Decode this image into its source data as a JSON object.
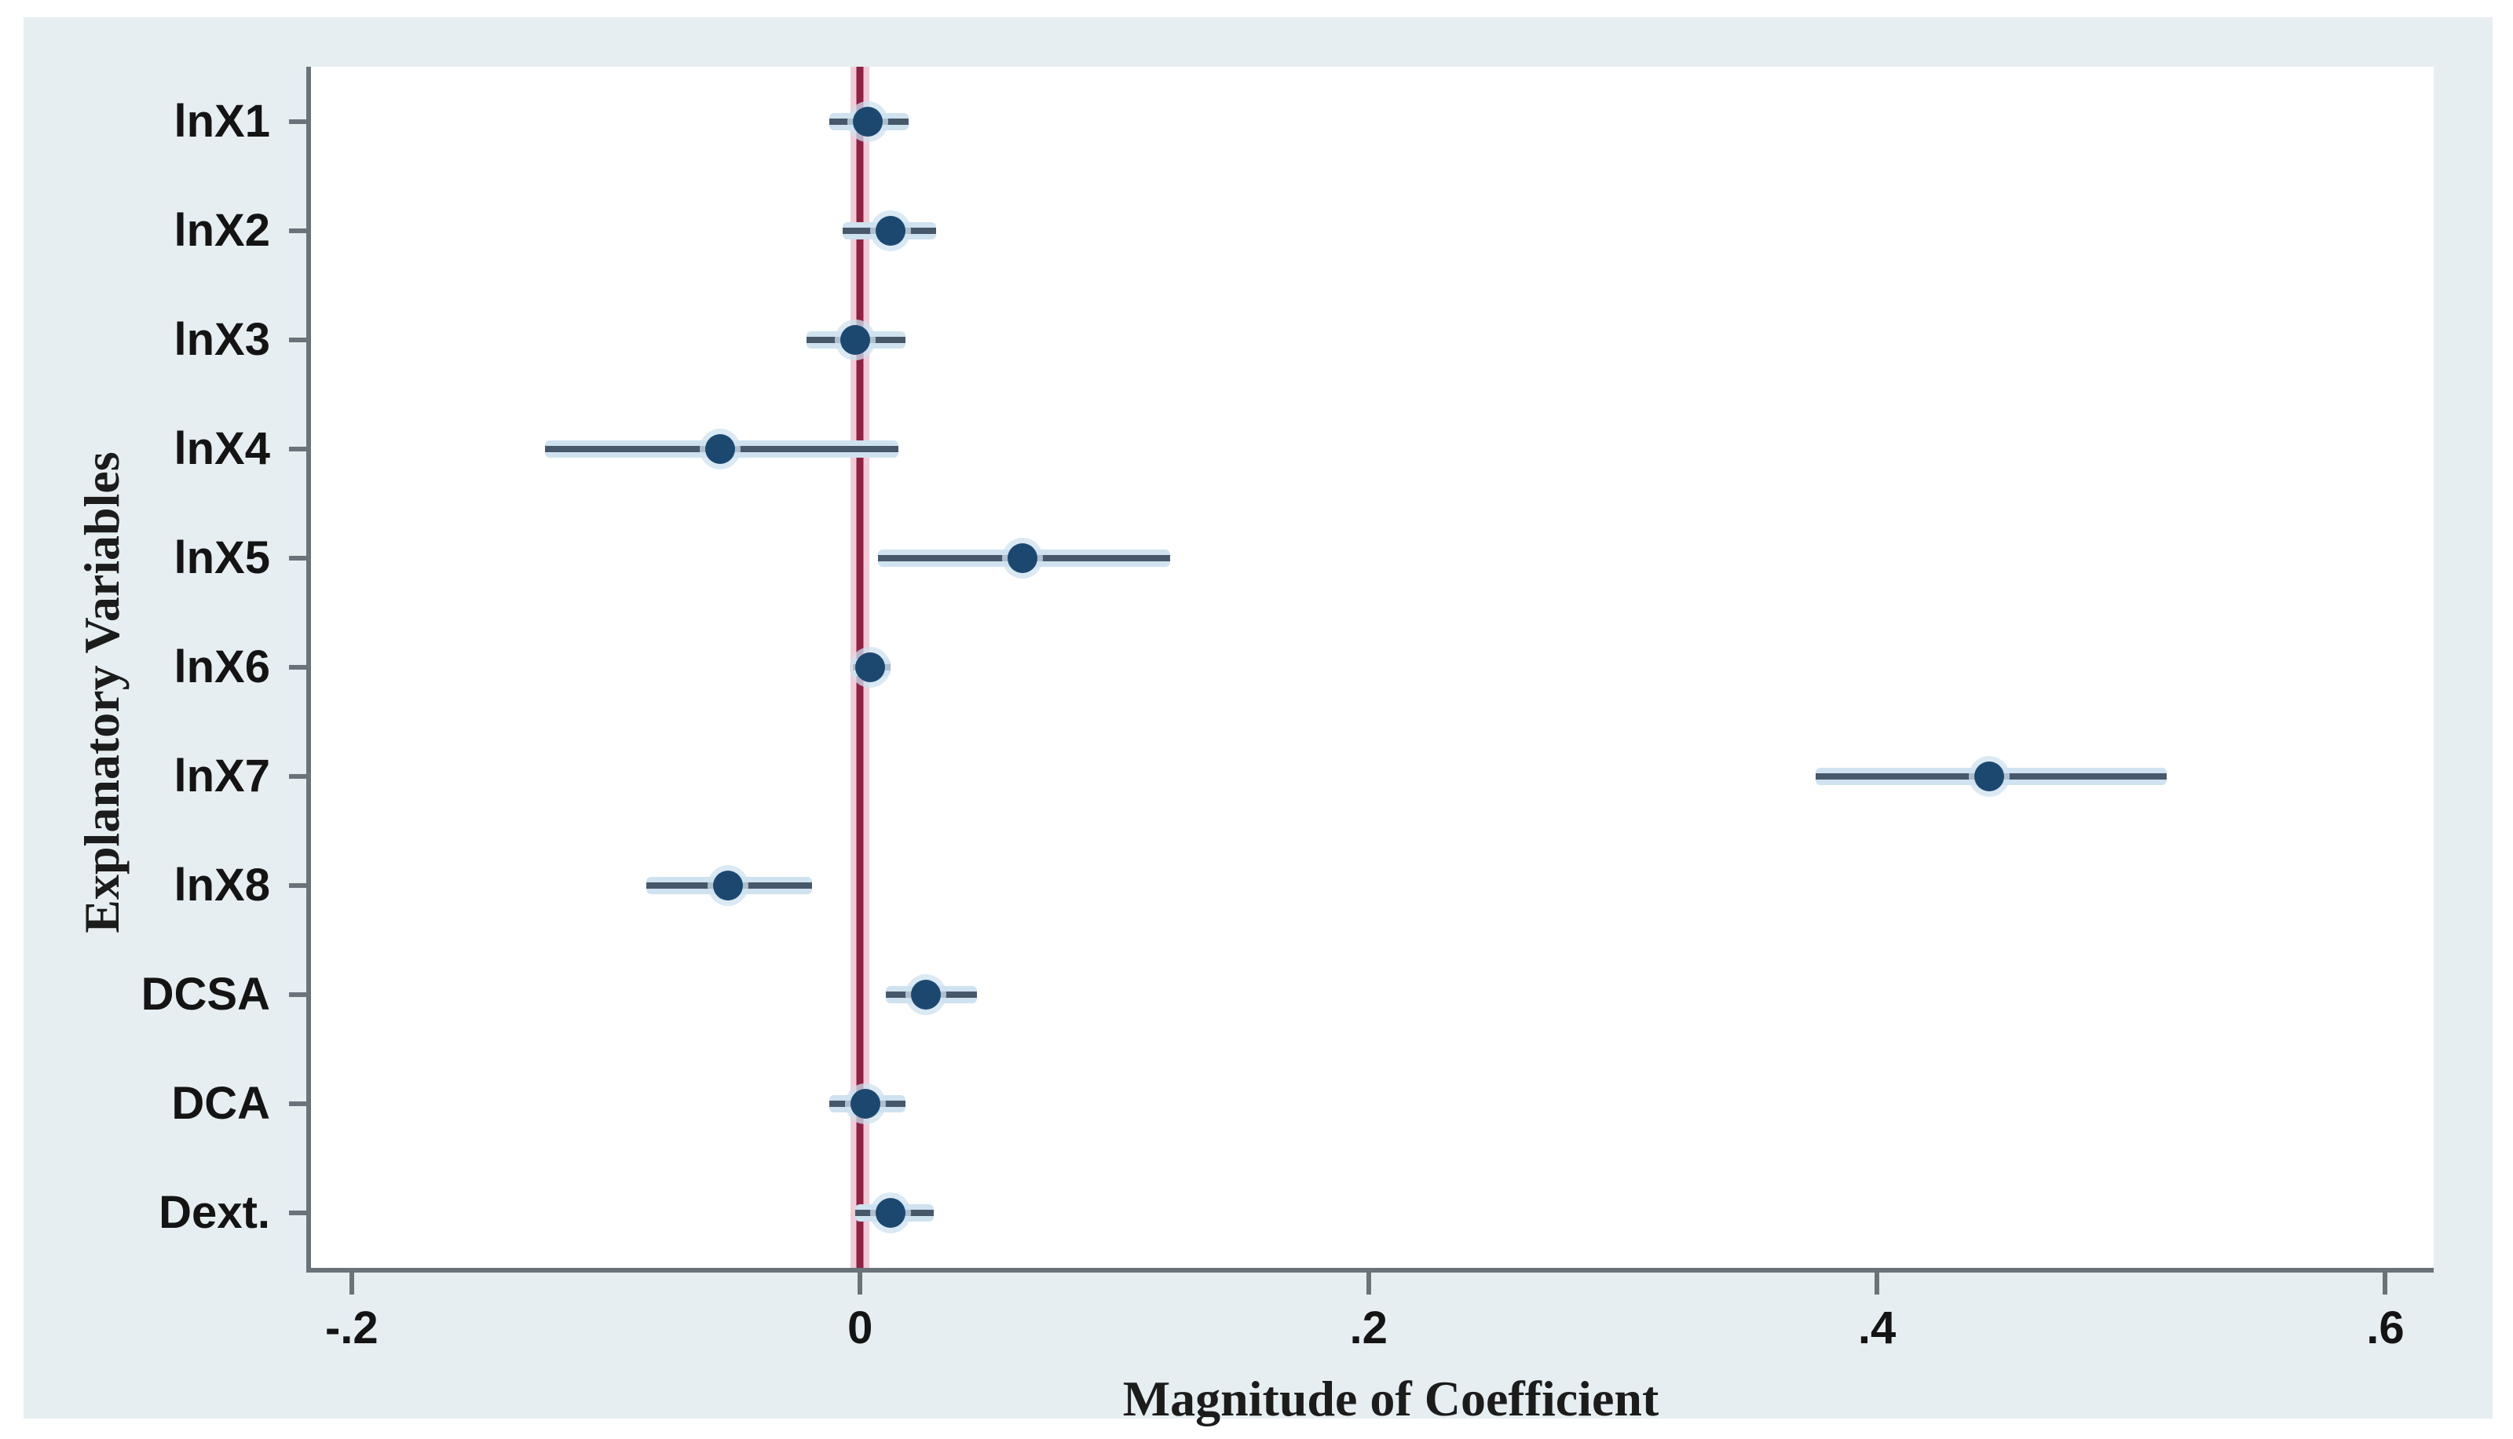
{
  "chart_data": {
    "type": "scatter",
    "subtype": "coefficient-forest-plot",
    "title": "",
    "xlabel": "Magnitude of Coefficient",
    "ylabel": "Explanatory Variables",
    "categories": [
      "lnX1",
      "lnX2",
      "lnX3",
      "lnX4",
      "lnX5",
      "lnX6",
      "lnX7",
      "lnX8",
      "DCSA",
      "DCA",
      "Dext."
    ],
    "series": [
      {
        "name": "coefficient",
        "values": [
          0.003,
          0.012,
          -0.002,
          -0.055,
          0.064,
          0.004,
          0.444,
          -0.052,
          0.026,
          0.002,
          0.012
        ],
        "ci_low": [
          -0.012,
          -0.007,
          -0.021,
          -0.124,
          0.007,
          -0.003,
          0.376,
          -0.084,
          0.01,
          -0.012,
          -0.002
        ],
        "ci_high": [
          0.019,
          0.03,
          0.018,
          0.015,
          0.122,
          0.012,
          0.514,
          -0.019,
          0.046,
          0.018,
          0.029
        ]
      }
    ],
    "xticks": {
      "values": [
        -0.2,
        0,
        0.2,
        0.4,
        0.6
      ],
      "labels": [
        "-.2",
        "0",
        ".2",
        ".4",
        ".6"
      ]
    },
    "xlim": [
      -0.216,
      0.619
    ],
    "zero_line_x": 0,
    "grid": "off",
    "legend": "none",
    "colors": {
      "figure_bg": "#ffffff",
      "canvas_bg": "#e7eef1",
      "plot_bg": "#ffffff",
      "marker": "#1c4870",
      "ci_line": "#47586b",
      "ci_halo": "#cfe2ef",
      "zero_line": "#8e2344",
      "zero_halo": "#f1cbd8",
      "spine": "#6a7379",
      "text": "#141414"
    }
  }
}
